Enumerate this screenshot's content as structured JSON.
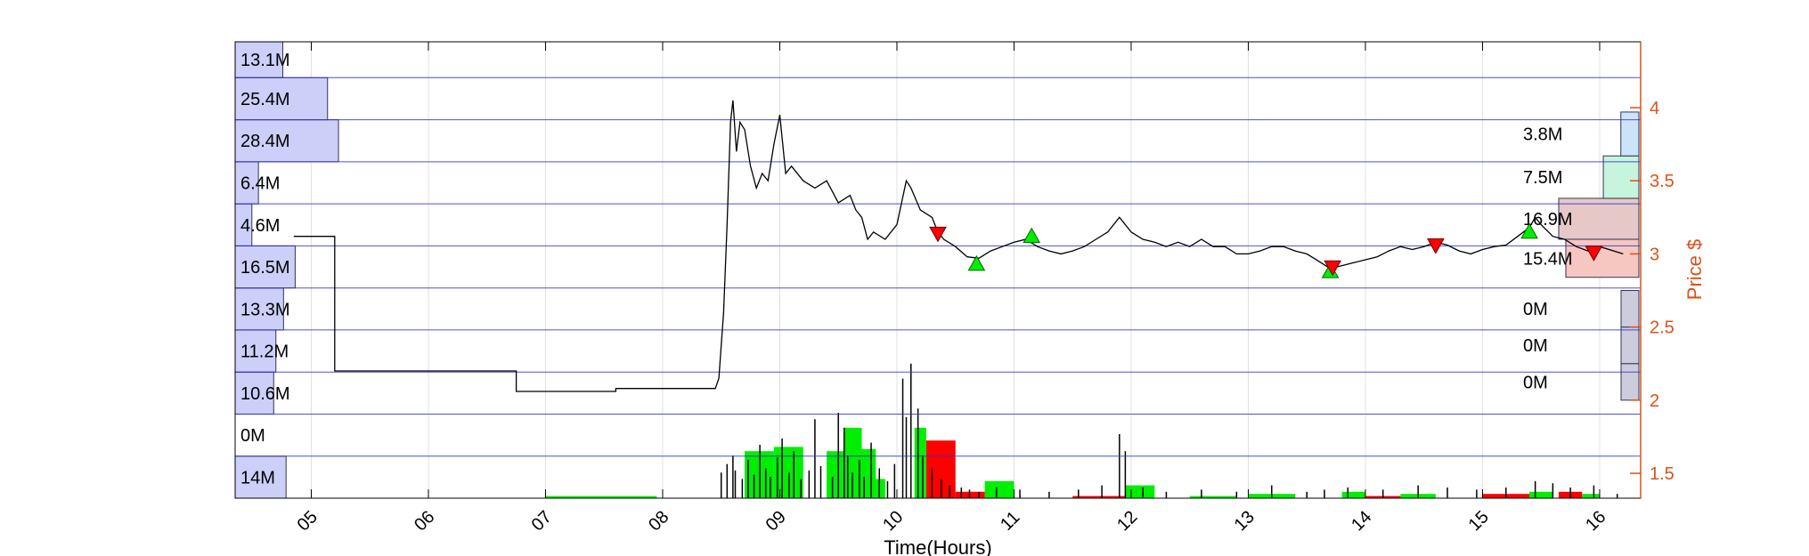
{
  "chart_data": {
    "type": "line",
    "xlabel": "Time(Hours)",
    "ylabel": "Price $",
    "xlim": [
      4.35,
      16.35
    ],
    "ylim": [
      1.33,
      4.45
    ],
    "x_ticks": [
      "05",
      "06",
      "07",
      "08",
      "09",
      "10",
      "11",
      "12",
      "13",
      "14",
      "15",
      "16"
    ],
    "x_tick_values": [
      5,
      6,
      7,
      8,
      9,
      10,
      11,
      12,
      13,
      14,
      15,
      16
    ],
    "y_ticks": [
      "1.5",
      "2",
      "2.5",
      "3",
      "3.5",
      "4"
    ],
    "y_tick_values": [
      1.5,
      2,
      2.5,
      3,
      3.5,
      4
    ],
    "price_band_edges": [
      1.33,
      1.617,
      1.905,
      2.192,
      2.48,
      2.767,
      3.055,
      3.342,
      3.63,
      3.917,
      4.205,
      4.45
    ],
    "price_series": [
      [
        4.85,
        3.12
      ],
      [
        5.2,
        3.12
      ],
      [
        5.2,
        2.2
      ],
      [
        6.75,
        2.2
      ],
      [
        6.75,
        2.06
      ],
      [
        7.6,
        2.06
      ],
      [
        7.6,
        2.08
      ],
      [
        8.45,
        2.08
      ],
      [
        8.48,
        2.15
      ],
      [
        8.52,
        2.6
      ],
      [
        8.55,
        3.2
      ],
      [
        8.58,
        3.9
      ],
      [
        8.6,
        4.05
      ],
      [
        8.63,
        3.7
      ],
      [
        8.66,
        3.9
      ],
      [
        8.7,
        3.85
      ],
      [
        8.75,
        3.6
      ],
      [
        8.8,
        3.45
      ],
      [
        8.85,
        3.55
      ],
      [
        8.9,
        3.5
      ],
      [
        8.95,
        3.75
      ],
      [
        9.0,
        3.95
      ],
      [
        9.05,
        3.55
      ],
      [
        9.1,
        3.6
      ],
      [
        9.2,
        3.5
      ],
      [
        9.3,
        3.45
      ],
      [
        9.4,
        3.5
      ],
      [
        9.5,
        3.35
      ],
      [
        9.6,
        3.4
      ],
      [
        9.65,
        3.3
      ],
      [
        9.7,
        3.25
      ],
      [
        9.75,
        3.1
      ],
      [
        9.8,
        3.15
      ],
      [
        9.9,
        3.1
      ],
      [
        10.0,
        3.2
      ],
      [
        10.08,
        3.5
      ],
      [
        10.12,
        3.45
      ],
      [
        10.2,
        3.3
      ],
      [
        10.3,
        3.25
      ],
      [
        10.35,
        3.15
      ],
      [
        10.4,
        3.1
      ],
      [
        10.5,
        3.05
      ],
      [
        10.6,
        2.98
      ],
      [
        10.7,
        2.97
      ],
      [
        10.8,
        3.02
      ],
      [
        10.9,
        3.05
      ],
      [
        11.0,
        3.08
      ],
      [
        11.1,
        3.1
      ],
      [
        11.2,
        3.05
      ],
      [
        11.3,
        3.02
      ],
      [
        11.4,
        3.0
      ],
      [
        11.5,
        3.02
      ],
      [
        11.6,
        3.05
      ],
      [
        11.7,
        3.1
      ],
      [
        11.8,
        3.15
      ],
      [
        11.9,
        3.25
      ],
      [
        12.0,
        3.15
      ],
      [
        12.1,
        3.1
      ],
      [
        12.2,
        3.08
      ],
      [
        12.3,
        3.05
      ],
      [
        12.4,
        3.08
      ],
      [
        12.5,
        3.05
      ],
      [
        12.6,
        3.1
      ],
      [
        12.7,
        3.05
      ],
      [
        12.8,
        3.05
      ],
      [
        12.9,
        3.0
      ],
      [
        13.0,
        3.0
      ],
      [
        13.1,
        3.02
      ],
      [
        13.2,
        3.05
      ],
      [
        13.3,
        3.05
      ],
      [
        13.4,
        3.02
      ],
      [
        13.5,
        3.0
      ],
      [
        13.6,
        2.95
      ],
      [
        13.7,
        2.9
      ],
      [
        13.8,
        2.92
      ],
      [
        13.9,
        2.94
      ],
      [
        14.0,
        2.96
      ],
      [
        14.1,
        2.98
      ],
      [
        14.2,
        3.02
      ],
      [
        14.3,
        3.05
      ],
      [
        14.4,
        3.03
      ],
      [
        14.5,
        3.05
      ],
      [
        14.6,
        3.08
      ],
      [
        14.7,
        3.06
      ],
      [
        14.8,
        3.02
      ],
      [
        14.9,
        3.0
      ],
      [
        15.0,
        3.03
      ],
      [
        15.1,
        3.05
      ],
      [
        15.2,
        3.06
      ],
      [
        15.3,
        3.12
      ],
      [
        15.4,
        3.18
      ],
      [
        15.45,
        3.25
      ],
      [
        15.5,
        3.2
      ],
      [
        15.6,
        3.12
      ],
      [
        15.7,
        3.1
      ],
      [
        15.8,
        3.05
      ],
      [
        15.9,
        3.02
      ],
      [
        16.0,
        3.05
      ],
      [
        16.2,
        3.0
      ]
    ],
    "buy_signals": [
      [
        10.68,
        2.93
      ],
      [
        11.15,
        3.12
      ],
      [
        13.7,
        2.88
      ],
      [
        15.4,
        3.15
      ]
    ],
    "sell_signals": [
      [
        10.35,
        3.14
      ],
      [
        13.72,
        2.91
      ],
      [
        14.6,
        3.06
      ],
      [
        15.95,
        3.01
      ]
    ],
    "hourly_volume_up": [
      [
        7.0,
        7.95,
        0.01
      ],
      [
        8.7,
        8.95,
        0.22
      ],
      [
        8.95,
        9.2,
        0.24
      ],
      [
        9.4,
        9.55,
        0.22
      ],
      [
        9.55,
        9.7,
        0.33
      ],
      [
        9.7,
        9.82,
        0.23
      ],
      [
        9.82,
        9.9,
        0.09
      ],
      [
        10.15,
        10.25,
        0.33
      ],
      [
        10.75,
        11.0,
        0.08
      ],
      [
        11.95,
        12.2,
        0.06
      ],
      [
        12.5,
        12.9,
        0.01
      ],
      [
        13.0,
        13.4,
        0.02
      ],
      [
        13.8,
        14.0,
        0.03
      ],
      [
        14.3,
        14.6,
        0.02
      ],
      [
        15.4,
        15.6,
        0.03
      ],
      [
        15.85,
        16.0,
        0.02
      ]
    ],
    "hourly_volume_down": [
      [
        10.25,
        10.5,
        0.27
      ],
      [
        10.5,
        10.75,
        0.03
      ],
      [
        11.5,
        11.95,
        0.01
      ],
      [
        14.0,
        14.3,
        0.01
      ],
      [
        15.0,
        15.4,
        0.02
      ],
      [
        15.65,
        15.85,
        0.03
      ]
    ],
    "minute_volume_bursts": [
      [
        8.5,
        0.12
      ],
      [
        8.55,
        0.16
      ],
      [
        8.6,
        0.2
      ],
      [
        8.62,
        0.13
      ],
      [
        8.68,
        0.09
      ],
      [
        8.73,
        0.18
      ],
      [
        8.78,
        0.11
      ],
      [
        8.83,
        0.25
      ],
      [
        8.88,
        0.14
      ],
      [
        8.92,
        0.1
      ],
      [
        8.98,
        0.19
      ],
      [
        9.02,
        0.28
      ],
      [
        9.08,
        0.12
      ],
      [
        9.12,
        0.22
      ],
      [
        9.18,
        0.09
      ],
      [
        9.25,
        0.13
      ],
      [
        9.3,
        0.37
      ],
      [
        9.35,
        0.15
      ],
      [
        9.45,
        0.1
      ],
      [
        9.5,
        0.4
      ],
      [
        9.55,
        0.33
      ],
      [
        9.58,
        0.2
      ],
      [
        9.62,
        0.12
      ],
      [
        9.68,
        0.18
      ],
      [
        9.72,
        0.1
      ],
      [
        9.78,
        0.26
      ],
      [
        9.85,
        0.14
      ],
      [
        9.92,
        0.08
      ],
      [
        9.98,
        0.16
      ],
      [
        10.05,
        0.56
      ],
      [
        10.08,
        0.38
      ],
      [
        10.12,
        0.63
      ],
      [
        10.18,
        0.42
      ],
      [
        10.22,
        0.2
      ],
      [
        10.3,
        0.14
      ],
      [
        10.38,
        0.09
      ],
      [
        10.45,
        0.06
      ],
      [
        10.55,
        0.05
      ],
      [
        10.62,
        0.04
      ],
      [
        10.7,
        0.03
      ],
      [
        10.85,
        0.05
      ],
      [
        11.05,
        0.04
      ],
      [
        11.3,
        0.03
      ],
      [
        11.55,
        0.04
      ],
      [
        11.75,
        0.06
      ],
      [
        11.9,
        0.3
      ],
      [
        11.95,
        0.22
      ],
      [
        12.1,
        0.05
      ],
      [
        12.3,
        0.03
      ],
      [
        12.6,
        0.04
      ],
      [
        12.9,
        0.03
      ],
      [
        13.2,
        0.06
      ],
      [
        13.5,
        0.03
      ],
      [
        13.65,
        0.04
      ],
      [
        13.85,
        0.05
      ],
      [
        14.15,
        0.04
      ],
      [
        14.45,
        0.06
      ],
      [
        14.7,
        0.05
      ],
      [
        14.95,
        0.04
      ],
      [
        15.2,
        0.05
      ],
      [
        15.45,
        0.08
      ],
      [
        15.6,
        0.07
      ],
      [
        15.75,
        0.05
      ],
      [
        15.95,
        0.06
      ],
      [
        16.15,
        0.02
      ]
    ],
    "volume_profile_left": [
      {
        "label": "14M",
        "value": 14.0
      },
      {
        "label": "0M",
        "value": 0
      },
      {
        "label": "10.6M",
        "value": 10.6
      },
      {
        "label": "11.2M",
        "value": 11.2
      },
      {
        "label": "13.3M",
        "value": 13.3
      },
      {
        "label": "16.5M",
        "value": 16.5
      },
      {
        "label": "4.6M",
        "value": 4.6
      },
      {
        "label": "6.4M",
        "value": 6.4
      },
      {
        "label": "28.4M",
        "value": 28.4
      },
      {
        "label": "25.4M",
        "value": 25.4
      },
      {
        "label": "13.1M",
        "value": 13.1
      }
    ],
    "volume_profile_right": [
      {
        "label": "0M",
        "value": 0,
        "low": 2.0,
        "high": 2.25
      },
      {
        "label": "0M",
        "value": 0,
        "low": 2.25,
        "high": 2.5
      },
      {
        "label": "0M",
        "value": 0,
        "low": 2.5,
        "high": 2.75
      },
      {
        "label": "15.4M",
        "value": 15.4,
        "low": 2.84,
        "high": 3.1
      },
      {
        "label": "16.9M",
        "value": 16.9,
        "low": 3.1,
        "high": 3.38
      },
      {
        "label": "7.5M",
        "value": 7.5,
        "low": 3.38,
        "high": 3.67
      },
      {
        "label": "3.8M",
        "value": 3.8,
        "low": 3.67,
        "high": 3.97
      }
    ],
    "colors": {
      "price_line": "#000000",
      "price_axis": "#d95319",
      "up_volume": "#00ee00",
      "down_volume": "#ff0000",
      "buy_marker": "#00ee00",
      "sell_marker": "#ff0000",
      "left_profile": "#ccd0f8",
      "right_profile_colors": [
        "#ccccdd",
        "#ccccdd",
        "#ccccdd",
        "#f6c6c0",
        "#e6c8c8",
        "#c6f4dc",
        "#cce4fa"
      ]
    }
  }
}
